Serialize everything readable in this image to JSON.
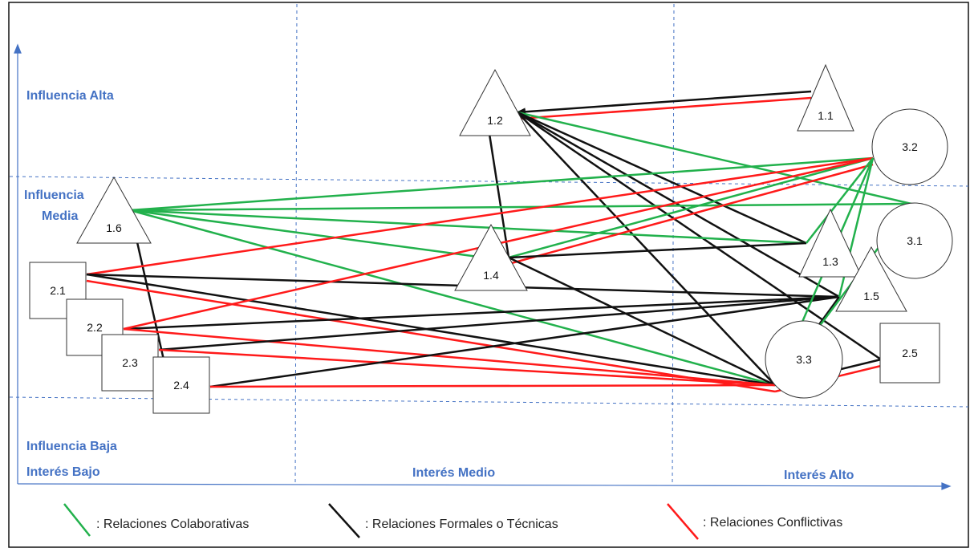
{
  "axes": {
    "y_labels": [
      "Influencia Alta",
      "Influencia",
      "Media",
      "Influencia Baja"
    ],
    "x_labels": [
      "Interés Bajo",
      "Interés Medio",
      "Interés Alto"
    ]
  },
  "nodes": [
    {
      "id": "1.1",
      "shape": "triangle"
    },
    {
      "id": "1.2",
      "shape": "triangle"
    },
    {
      "id": "1.3",
      "shape": "triangle"
    },
    {
      "id": "1.4",
      "shape": "triangle"
    },
    {
      "id": "1.5",
      "shape": "triangle"
    },
    {
      "id": "1.6",
      "shape": "triangle"
    },
    {
      "id": "2.1",
      "shape": "square"
    },
    {
      "id": "2.2",
      "shape": "square"
    },
    {
      "id": "2.3",
      "shape": "square"
    },
    {
      "id": "2.4",
      "shape": "square"
    },
    {
      "id": "2.5",
      "shape": "square"
    },
    {
      "id": "3.1",
      "shape": "circle"
    },
    {
      "id": "3.2",
      "shape": "circle"
    },
    {
      "id": "3.3",
      "shape": "circle"
    }
  ],
  "relation_colors": {
    "collaborative": "#22b14c",
    "formal": "#111111",
    "conflict": "#ff1a1a"
  },
  "legend": [
    {
      "type": "collaborative",
      "label": ": Relaciones Colaborativas"
    },
    {
      "type": "formal",
      "label": ": Relaciones Formales o Técnicas"
    },
    {
      "type": "conflict",
      "label": ": Relaciones Conflictivas"
    }
  ],
  "edges": [
    {
      "from": "1.1",
      "to": "1.2",
      "type": "formal",
      "arrow": true
    },
    {
      "from": "1.1",
      "to": "1.2",
      "type": "conflict"
    },
    {
      "from": "1.2",
      "to": "3.1",
      "type": "collaborative"
    },
    {
      "from": "1.2",
      "to": "1.3",
      "type": "formal"
    },
    {
      "from": "1.2",
      "to": "1.5",
      "type": "formal"
    },
    {
      "from": "1.2",
      "to": "3.3",
      "type": "formal"
    },
    {
      "from": "1.2",
      "to": "2.5",
      "type": "formal"
    },
    {
      "from": "1.2",
      "to": "1.4",
      "type": "formal"
    },
    {
      "from": "1.6",
      "to": "3.2",
      "type": "collaborative"
    },
    {
      "from": "1.6",
      "to": "3.1",
      "type": "collaborative"
    },
    {
      "from": "1.6",
      "to": "1.3",
      "type": "collaborative"
    },
    {
      "from": "1.6",
      "to": "1.4",
      "type": "collaborative"
    },
    {
      "from": "1.6",
      "to": "3.3",
      "type": "collaborative"
    },
    {
      "from": "1.6",
      "to": "2.4",
      "type": "formal"
    },
    {
      "from": "1.4",
      "to": "3.2",
      "type": "collaborative"
    },
    {
      "from": "1.4",
      "to": "3.2",
      "type": "conflict"
    },
    {
      "from": "1.4",
      "to": "1.3",
      "type": "formal"
    },
    {
      "from": "1.4",
      "to": "3.3",
      "type": "formal"
    },
    {
      "from": "2.1",
      "to": "3.2",
      "type": "conflict"
    },
    {
      "from": "2.1",
      "to": "1.5",
      "type": "formal"
    },
    {
      "from": "2.1",
      "to": "3.3",
      "type": "formal"
    },
    {
      "from": "2.1",
      "to": "3.3",
      "type": "conflict"
    },
    {
      "from": "2.2",
      "to": "1.5",
      "type": "formal"
    },
    {
      "from": "2.2",
      "to": "3.2",
      "type": "conflict"
    },
    {
      "from": "2.2",
      "to": "3.3",
      "type": "conflict"
    },
    {
      "from": "2.3",
      "to": "1.5",
      "type": "formal"
    },
    {
      "from": "2.3",
      "to": "3.3",
      "type": "conflict"
    },
    {
      "from": "2.4",
      "to": "1.5",
      "type": "formal"
    },
    {
      "from": "2.4",
      "to": "3.3",
      "type": "conflict"
    },
    {
      "from": "3.3",
      "to": "2.5",
      "type": "formal"
    },
    {
      "from": "3.3",
      "to": "2.5",
      "type": "conflict"
    },
    {
      "from": "3.3",
      "to": "1.5",
      "type": "formal"
    },
    {
      "from": "3.3",
      "to": "3.2",
      "type": "collaborative"
    },
    {
      "from": "1.5",
      "to": "3.2",
      "type": "collaborative"
    },
    {
      "from": "1.3",
      "to": "3.2",
      "type": "collaborative"
    },
    {
      "from": "3.3",
      "to": "3.1",
      "type": "collaborative"
    }
  ]
}
